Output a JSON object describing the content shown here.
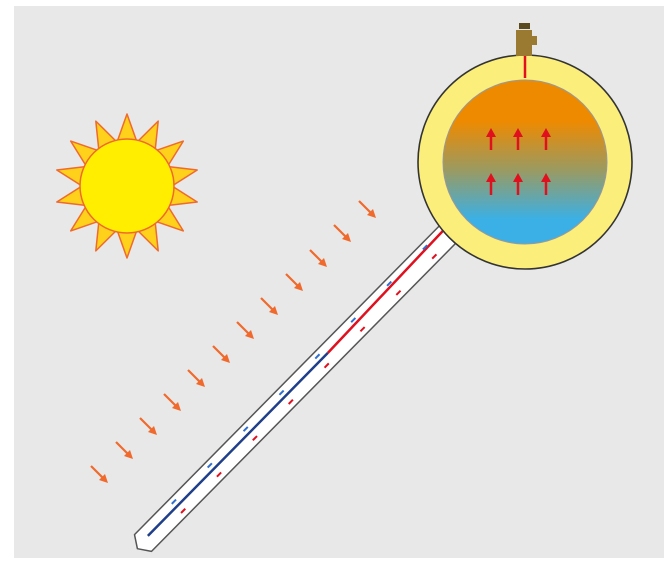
{
  "diagram": {
    "subject": "solar-water-heater-schematic",
    "colors": {
      "background": "#e8e8e8",
      "sun_fill": "#ffee00",
      "sun_ray": "#ffd11a",
      "sun_outline": "#ef6a2c",
      "sunbeam_arrow": "#ef6a2c",
      "tank_casing": "#fbee7a",
      "tank_hot": "#ee8a00",
      "tank_mid": "#9a9a62",
      "tank_cold": "#3bb0e6",
      "flow_arrow": "#e0101e",
      "hot_line": "#e0101e",
      "cold_line": "#1f3f8a",
      "cold_marker": "#2f6fd0",
      "valve": "#9a7a30",
      "tube_outline": "#555555",
      "tube_fill": "#ffffff"
    },
    "icons": [
      "sun-icon",
      "sunbeam-arrow-icon",
      "flow-up-arrow-icon",
      "valve-icon"
    ],
    "sunbeam_arrow_count": 12,
    "tank_arrow_rows": 2,
    "tank_arrows_per_row": 3
  }
}
